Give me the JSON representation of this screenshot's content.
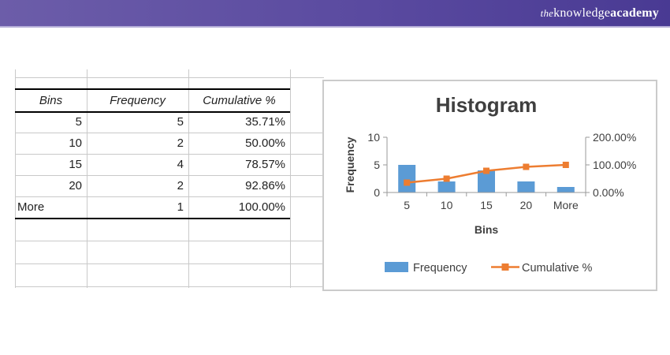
{
  "brand": {
    "logo_the": "the",
    "logo_knowledge": "knowledge",
    "logo_academy": "academy",
    "bar_color_left": "#6c5da9",
    "bar_color_right": "#493a93",
    "underline_color": "#b5aed8"
  },
  "table": {
    "headers": [
      "Bins",
      "Frequency",
      "Cumulative %"
    ],
    "rows": [
      [
        "5",
        "5",
        "35.71%"
      ],
      [
        "10",
        "2",
        "50.00%"
      ],
      [
        "15",
        "4",
        "78.57%"
      ],
      [
        "20",
        "2",
        "92.86%"
      ],
      [
        "More",
        "1",
        "100.00%"
      ]
    ],
    "empty_rows_below": 3
  },
  "chart_data": {
    "type": "bar",
    "title": "Histogram",
    "categories": [
      "5",
      "10",
      "15",
      "20",
      "More"
    ],
    "series": [
      {
        "name": "Frequency",
        "kind": "bar",
        "axis": "left",
        "color": "#5b9bd5",
        "values": [
          5,
          2,
          4,
          2,
          1
        ]
      },
      {
        "name": "Cumulative %",
        "kind": "line",
        "axis": "right",
        "color": "#ed7d31",
        "values": [
          35.71,
          50.0,
          78.57,
          92.86,
          100.0
        ]
      }
    ],
    "xlabel": "Bins",
    "ylabel": "Frequency",
    "left_axis": {
      "min": 0,
      "max": 10,
      "tick_labels_top_to_bottom": [
        "10",
        "5",
        "0"
      ]
    },
    "right_axis": {
      "min": 0,
      "max": 200,
      "tick_labels_top_to_bottom": [
        "200.00%",
        "100.00%",
        "0.00%"
      ]
    },
    "legend_position": "bottom",
    "grid": false
  }
}
